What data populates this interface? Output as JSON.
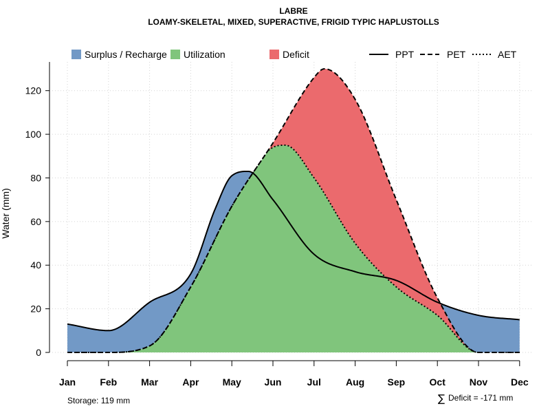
{
  "chart_data": {
    "type": "area",
    "title": "LABRE",
    "subtitle": "LOAMY-SKELETAL, MIXED, SUPERACTIVE, FRIGID TYPIC HAPLUSTOLLS",
    "ylabel": "Water (mm)",
    "xlabel": "",
    "ylim": [
      0,
      130
    ],
    "yticks": [
      0,
      20,
      40,
      60,
      80,
      100,
      120
    ],
    "categories": [
      "Jan",
      "Feb",
      "Mar",
      "Apr",
      "May",
      "Jun",
      "Jul",
      "Aug",
      "Sep",
      "Oct",
      "Nov",
      "Dec"
    ],
    "grid": true,
    "legend_position": "top",
    "series": [
      {
        "name": "PPT",
        "style": "solid",
        "x": [
          1,
          2,
          3,
          4,
          4.6,
          5,
          5.4,
          6,
          7,
          8,
          9,
          10,
          11,
          12
        ],
        "values": [
          13,
          10,
          23,
          36,
          66,
          81,
          83,
          70,
          45,
          37,
          33,
          23,
          17,
          15
        ]
      },
      {
        "name": "PET",
        "style": "dashed",
        "x": [
          1,
          2,
          3,
          4,
          5,
          6,
          7,
          7.25,
          8,
          9,
          10,
          11,
          12
        ],
        "values": [
          0,
          0,
          3,
          30,
          67,
          96,
          126,
          130,
          116,
          70,
          25,
          0,
          0
        ]
      },
      {
        "name": "AET",
        "style": "dotted",
        "x": [
          1,
          2,
          3,
          4,
          5,
          6,
          6.3,
          7,
          8,
          9,
          10,
          11,
          12
        ],
        "values": [
          0,
          0,
          3,
          30,
          67,
          94,
          95,
          80,
          50,
          30,
          17,
          0,
          0
        ]
      }
    ],
    "areas": [
      {
        "name": "Surplus / Recharge",
        "color": "#7299C6"
      },
      {
        "name": "Utilization",
        "color": "#80C57C"
      },
      {
        "name": "Deficit",
        "color": "#EB6A6D"
      }
    ],
    "annotations": {
      "storage": "Storage: 119 mm",
      "deficit_symbol": "∑",
      "deficit": "Deficit = -171 mm"
    }
  }
}
